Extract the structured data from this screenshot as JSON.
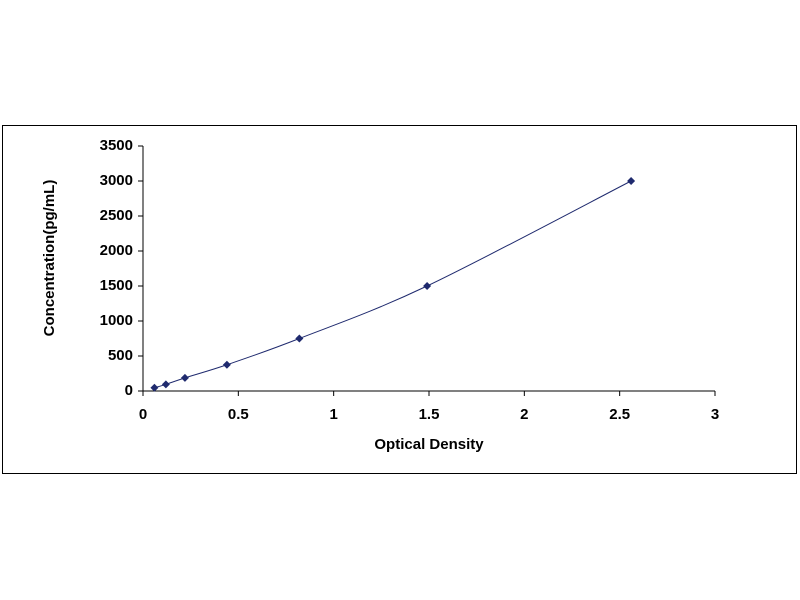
{
  "chart_data": {
    "type": "scatter",
    "x_label": "Optical Density",
    "y_label": "Concentration(pg/mL)",
    "x": [
      0.06,
      0.12,
      0.22,
      0.44,
      0.82,
      1.49,
      2.56
    ],
    "values": [
      47,
      94,
      188,
      375,
      750,
      1500,
      3000
    ],
    "color": "#1f2a6e",
    "smooth_line": true,
    "xlim": [
      0,
      3
    ],
    "xticks": [
      0,
      0.5,
      1,
      1.5,
      2,
      2.5,
      3
    ],
    "ylim": [
      0,
      3500
    ],
    "yticks": [
      0,
      500,
      1000,
      1500,
      2000,
      2500,
      3000,
      3500
    ],
    "grid": false
  }
}
